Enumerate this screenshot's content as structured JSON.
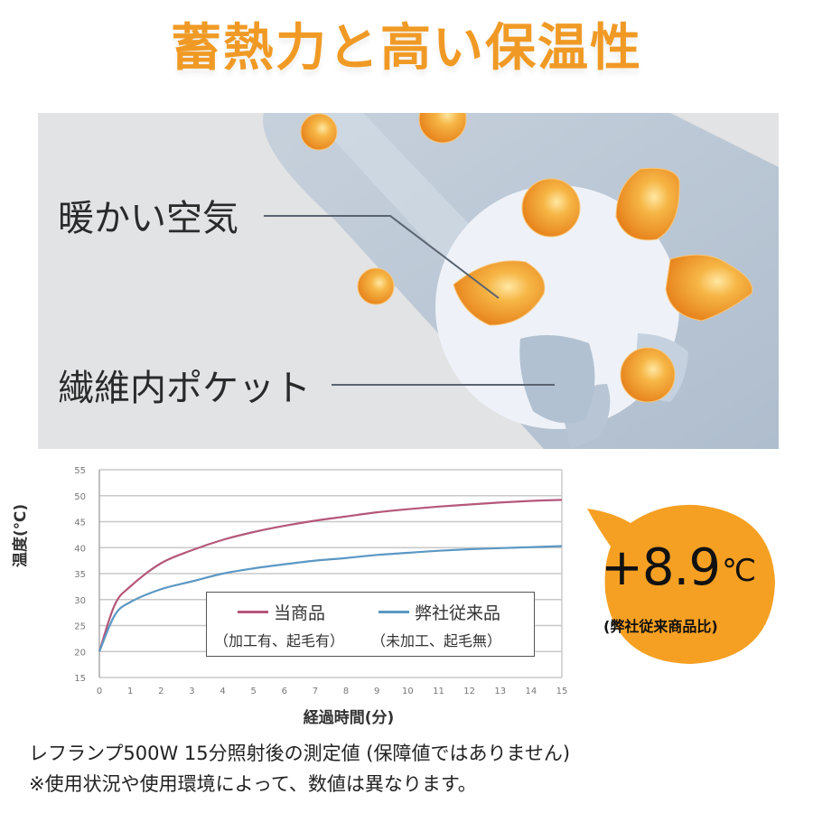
{
  "title": "蓄熱力と高い保温性",
  "illustration": {
    "label_warm_air": "暖かい空気",
    "label_fiber_pocket": "繊維内ポケット",
    "colors": {
      "background": "#e2e3e5",
      "fiber_shadow": "#b9c6d4",
      "fiber_face": "#eef2f8",
      "droplet": "#f0941f"
    }
  },
  "chart_data": {
    "type": "line",
    "title": "",
    "xlabel": "経過時間(分)",
    "ylabel": "温度(℃)",
    "x": [
      0,
      0.5,
      1,
      2,
      3,
      4,
      5,
      6,
      7,
      8,
      9,
      10,
      11,
      12,
      13,
      14,
      15
    ],
    "x_ticks": [
      0,
      1,
      2,
      3,
      4,
      5,
      6,
      7,
      8,
      9,
      10,
      11,
      12,
      13,
      14,
      15
    ],
    "y_ticks": [
      15,
      20,
      25,
      30,
      35,
      40,
      45,
      50,
      55
    ],
    "xlim": [
      0,
      15
    ],
    "ylim": [
      15,
      55
    ],
    "grid": true,
    "legend_position": "lower-center inside plot",
    "series": [
      {
        "name": "当商品",
        "sub": "（加工有、起毛有）",
        "color": "#b5577a",
        "values": [
          20,
          29,
          32.5,
          37,
          39.5,
          41.5,
          43,
          44.2,
          45.2,
          46,
          46.8,
          47.4,
          47.9,
          48.3,
          48.7,
          49,
          49.2
        ]
      },
      {
        "name": "弊社従来品",
        "sub": "（未加工、起毛無）",
        "color": "#5b98c4",
        "values": [
          20,
          27,
          29.5,
          32,
          33.5,
          35,
          36,
          36.8,
          37.5,
          38,
          38.6,
          39,
          39.4,
          39.7,
          39.9,
          40.1,
          40.3
        ]
      }
    ]
  },
  "badge": {
    "value": "+8.9",
    "unit": "℃",
    "note": "(弊社従来商品比)",
    "color": "#f5a023"
  },
  "footnotes": {
    "line1": "レフランプ500W  15分照射後の測定値 (保障値ではありません)",
    "line2": "※使用状況や使用環境によって、数値は異なります。"
  }
}
